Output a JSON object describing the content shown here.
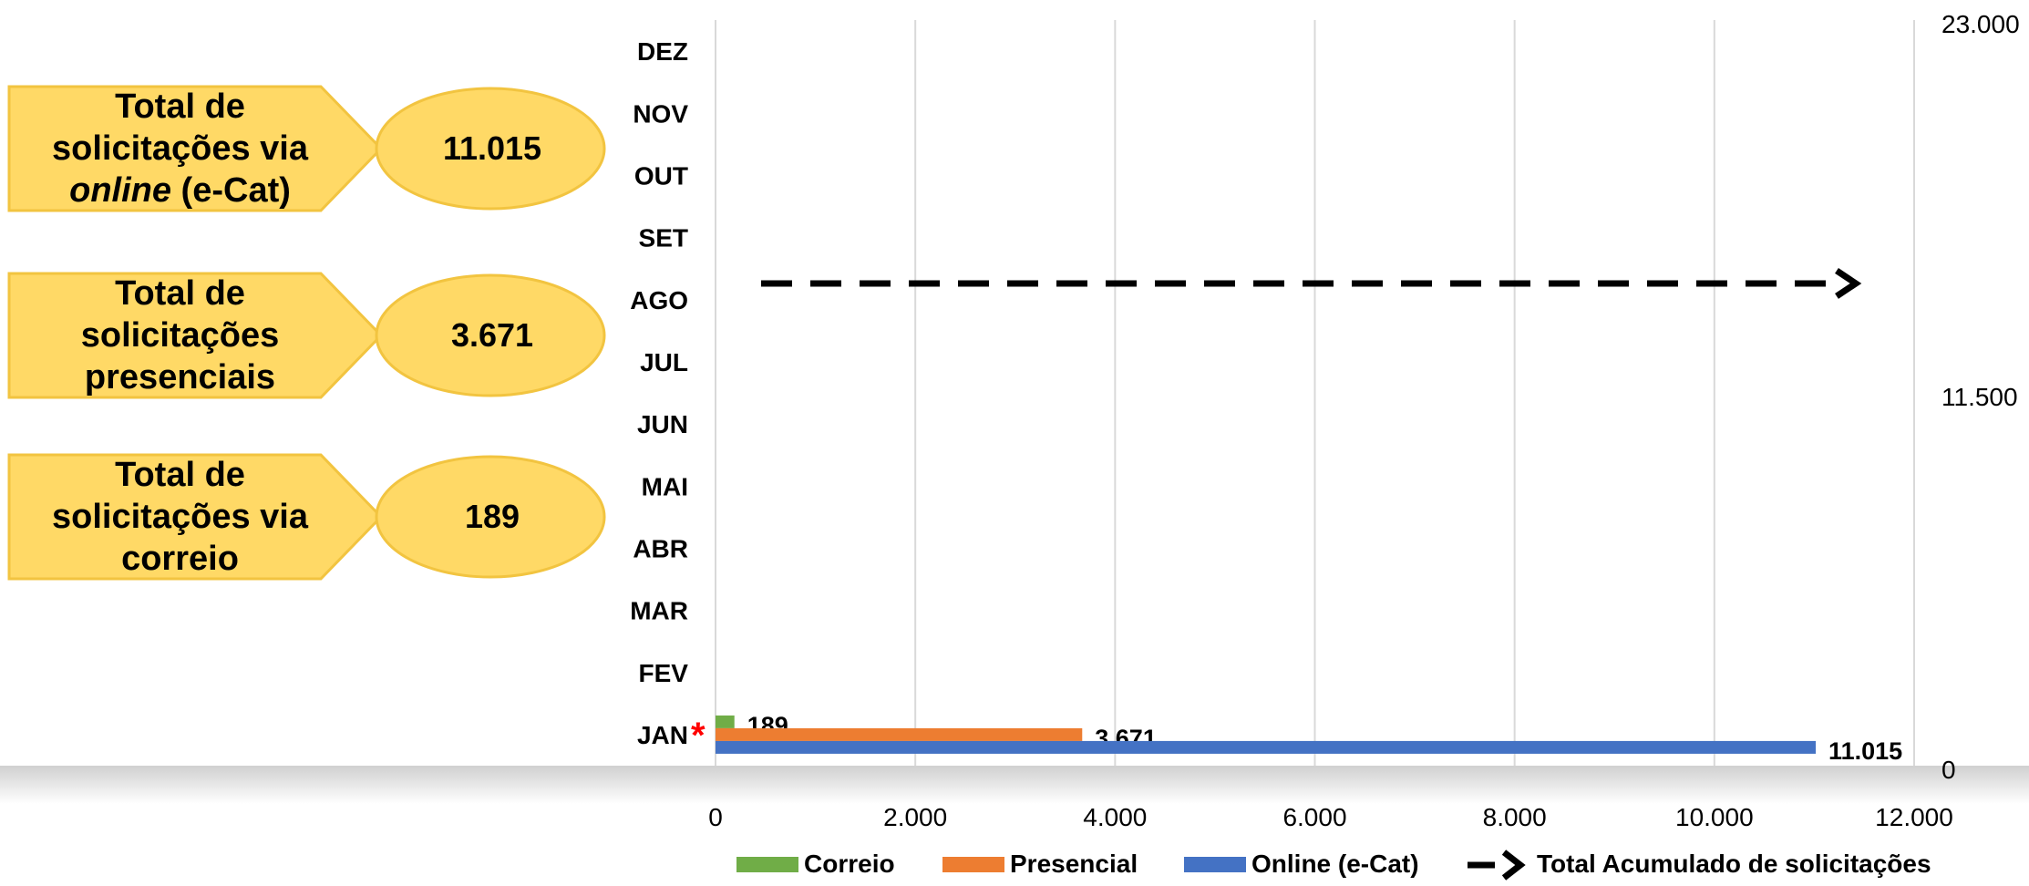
{
  "callouts": [
    {
      "label_line1": "Total de",
      "label_line2": "solicitações via",
      "label_line3_italic": "online",
      "label_line3_rest": " (e-Cat)",
      "value": "11.015"
    },
    {
      "label_line1": "Total de",
      "label_line2": "solicitações",
      "label_line3_italic": "",
      "label_line3_rest": "presenciais",
      "value": "3.671"
    },
    {
      "label_line1": "Total de",
      "label_line2": "solicitações via",
      "label_line3_italic": "",
      "label_line3_rest": "correio",
      "value": "189"
    }
  ],
  "colors": {
    "correio": "#70ad47",
    "presencial": "#ed7d31",
    "online": "#4472c4",
    "callout_fill": "#ffd966",
    "callout_stroke": "#f2c440",
    "gridline": "#d9d9d9",
    "asterisk": "#ff0000",
    "band": "#d0d0d0"
  },
  "chart_data": {
    "type": "bar",
    "orientation": "horizontal",
    "categories": [
      "JAN",
      "FEV",
      "MAR",
      "ABR",
      "MAI",
      "JUN",
      "JUL",
      "AGO",
      "SET",
      "OUT",
      "NOV",
      "DEZ"
    ],
    "category_marker": {
      "category": "JAN",
      "symbol": "*"
    },
    "series": [
      {
        "name": "Correio",
        "values": [
          189,
          null,
          null,
          null,
          null,
          null,
          null,
          null,
          null,
          null,
          null,
          null
        ],
        "data_labels": [
          "189"
        ]
      },
      {
        "name": "Presencial",
        "values": [
          3671,
          null,
          null,
          null,
          null,
          null,
          null,
          null,
          null,
          null,
          null,
          null
        ],
        "data_labels": [
          "3.671"
        ]
      },
      {
        "name": "Online (e-Cat)",
        "values": [
          11015,
          null,
          null,
          null,
          null,
          null,
          null,
          null,
          null,
          null,
          null,
          null
        ],
        "data_labels": [
          "11.015"
        ]
      }
    ],
    "line_series": {
      "name": "Total Acumulado de solicitações",
      "style": "dashed-arrow",
      "axis": "secondary",
      "value": 14875
    },
    "x_axis": {
      "min": 0,
      "max": 12000,
      "ticks": [
        0,
        2000,
        4000,
        6000,
        8000,
        10000,
        12000
      ],
      "tick_labels": [
        "0",
        "2.000",
        "4.000",
        "6.000",
        "8.000",
        "10.000",
        "12.000"
      ]
    },
    "secondary_axis": {
      "min": 0,
      "max": 23000,
      "ticks": [
        0,
        11500,
        23000
      ],
      "tick_labels": [
        "0",
        "11.500",
        "23.000"
      ]
    },
    "grid": true,
    "legend_position": "bottom",
    "legend": [
      {
        "label": "Correio",
        "kind": "bar"
      },
      {
        "label": "Presencial",
        "kind": "bar"
      },
      {
        "label": "Online (e-Cat)",
        "kind": "bar"
      },
      {
        "label": "Total Acumulado de solicitações",
        "kind": "dashed-arrow"
      }
    ]
  }
}
